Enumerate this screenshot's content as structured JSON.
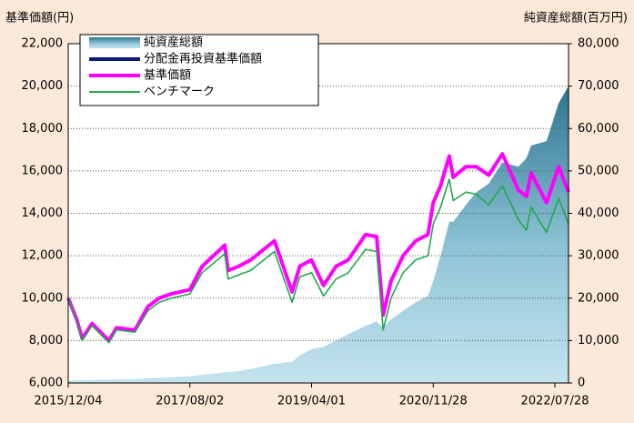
{
  "chart_data": {
    "type": "line",
    "y_label": "基準価額(円)",
    "y2_label": "純資産総額(百万円)",
    "x": [
      "2015/12/04",
      "2016/01/15",
      "2016/02/12",
      "2016/04/01",
      "2016/06/24",
      "2016/08/01",
      "2016/11/01",
      "2017/01/04",
      "2017/03/01",
      "2017/05/01",
      "2017/08/02",
      "2017/10/02",
      "2018/01/23",
      "2018/02/09",
      "2018/04/02",
      "2018/06/01",
      "2018/09/28",
      "2018/12/25",
      "2019/02/01",
      "2019/04/01",
      "2019/05/31",
      "2019/08/01",
      "2019/10/01",
      "2019/12/27",
      "2020/02/20",
      "2020/03/23",
      "2020/05/01",
      "2020/07/01",
      "2020/09/01",
      "2020/11/02",
      "2020/11/28",
      "2021/01/04",
      "2021/02/16",
      "2021/03/08",
      "2021/05/10",
      "2021/07/01",
      "2021/09/01",
      "2021/11/08",
      "2022/01/27",
      "2022/03/08",
      "2022/04/01",
      "2022/06/16",
      "2022/08/16",
      "2022/10/04"
    ],
    "series": [
      {
        "name": "純資産総額",
        "kind": "area",
        "axis": "y2",
        "color": "#5a9fb8",
        "values": [
          500,
          600,
          650,
          700,
          800,
          850,
          950,
          1100,
          1200,
          1400,
          1600,
          1900,
          2500,
          2500,
          2800,
          3300,
          4500,
          5000,
          6500,
          8000,
          8500,
          10000,
          11500,
          13500,
          14500,
          13000,
          15000,
          17000,
          19000,
          20500,
          24000,
          30000,
          38000,
          38000,
          42000,
          45000,
          47000,
          52000,
          51000,
          53000,
          56000,
          57000,
          66000,
          70000
        ]
      },
      {
        "name": "分配金再投資基準価額",
        "kind": "line",
        "color": "#0a1a7a",
        "values": [
          10000,
          9000,
          8100,
          8800,
          8000,
          8600,
          8500,
          9600,
          10000,
          10200,
          10400,
          11500,
          12500,
          11300,
          11500,
          11800,
          12700,
          10300,
          11500,
          11800,
          10600,
          11500,
          11800,
          13000,
          12900,
          9200,
          10800,
          12000,
          12700,
          13000,
          14500,
          15300,
          16700,
          15700,
          16200,
          16200,
          15800,
          16800,
          15100,
          14800,
          15900,
          14500,
          16200,
          15000
        ]
      },
      {
        "name": "基準価額",
        "kind": "line",
        "color": "#ff00ff",
        "values": [
          10000,
          9000,
          8100,
          8800,
          8000,
          8600,
          8500,
          9600,
          10000,
          10200,
          10400,
          11500,
          12500,
          11300,
          11500,
          11800,
          12700,
          10300,
          11500,
          11800,
          10600,
          11500,
          11800,
          13000,
          12900,
          9200,
          10800,
          12000,
          12700,
          13000,
          14500,
          15300,
          16700,
          15700,
          16200,
          16200,
          15800,
          16800,
          15100,
          14800,
          15900,
          14500,
          16200,
          15000
        ]
      },
      {
        "name": "ベンチマーク",
        "kind": "line",
        "color": "#22a84a",
        "values": [
          10000,
          8900,
          8000,
          8700,
          7900,
          8500,
          8400,
          9400,
          9800,
          10000,
          10200,
          11200,
          12100,
          10900,
          11100,
          11300,
          12200,
          9800,
          11000,
          11200,
          10100,
          10900,
          11200,
          12300,
          12200,
          8500,
          10000,
          11200,
          11800,
          12000,
          13500,
          14300,
          15600,
          14600,
          15000,
          14900,
          14400,
          15300,
          13700,
          13200,
          14300,
          13100,
          14700,
          13500
        ]
      }
    ],
    "xlim": [
      "2015/12/04",
      "2022/10/04"
    ],
    "xticks": [
      "2015/12/04",
      "2017/08/02",
      "2019/04/01",
      "2020/11/28",
      "2022/07/28"
    ],
    "ylim": [
      6000,
      22000
    ],
    "yticks": [
      {
        "value": 6000,
        "label": "6,000"
      },
      {
        "value": 8000,
        "label": "8,000"
      },
      {
        "value": 10000,
        "label": "10,000"
      },
      {
        "value": 12000,
        "label": "12,000"
      },
      {
        "value": 14000,
        "label": "14,000"
      },
      {
        "value": 16000,
        "label": "16,000"
      },
      {
        "value": 18000,
        "label": "18,000"
      },
      {
        "value": 20000,
        "label": "20,000"
      },
      {
        "value": 22000,
        "label": "22,000"
      }
    ],
    "y2lim": [
      0,
      80000
    ],
    "y2ticks": [
      0,
      {
        "value": 10000,
        "label": "10,000"
      },
      {
        "value": 20000,
        "label": "20,000"
      },
      {
        "value": 30000,
        "label": "30,000"
      },
      {
        "value": 40000,
        "label": "40,000"
      },
      {
        "value": 50000,
        "label": "50,000"
      },
      {
        "value": 60000,
        "label": "60,000"
      },
      {
        "value": 70000,
        "label": "70,000"
      },
      {
        "value": 80000,
        "label": "80,000"
      }
    ],
    "grid": true,
    "legend": "upper left"
  }
}
